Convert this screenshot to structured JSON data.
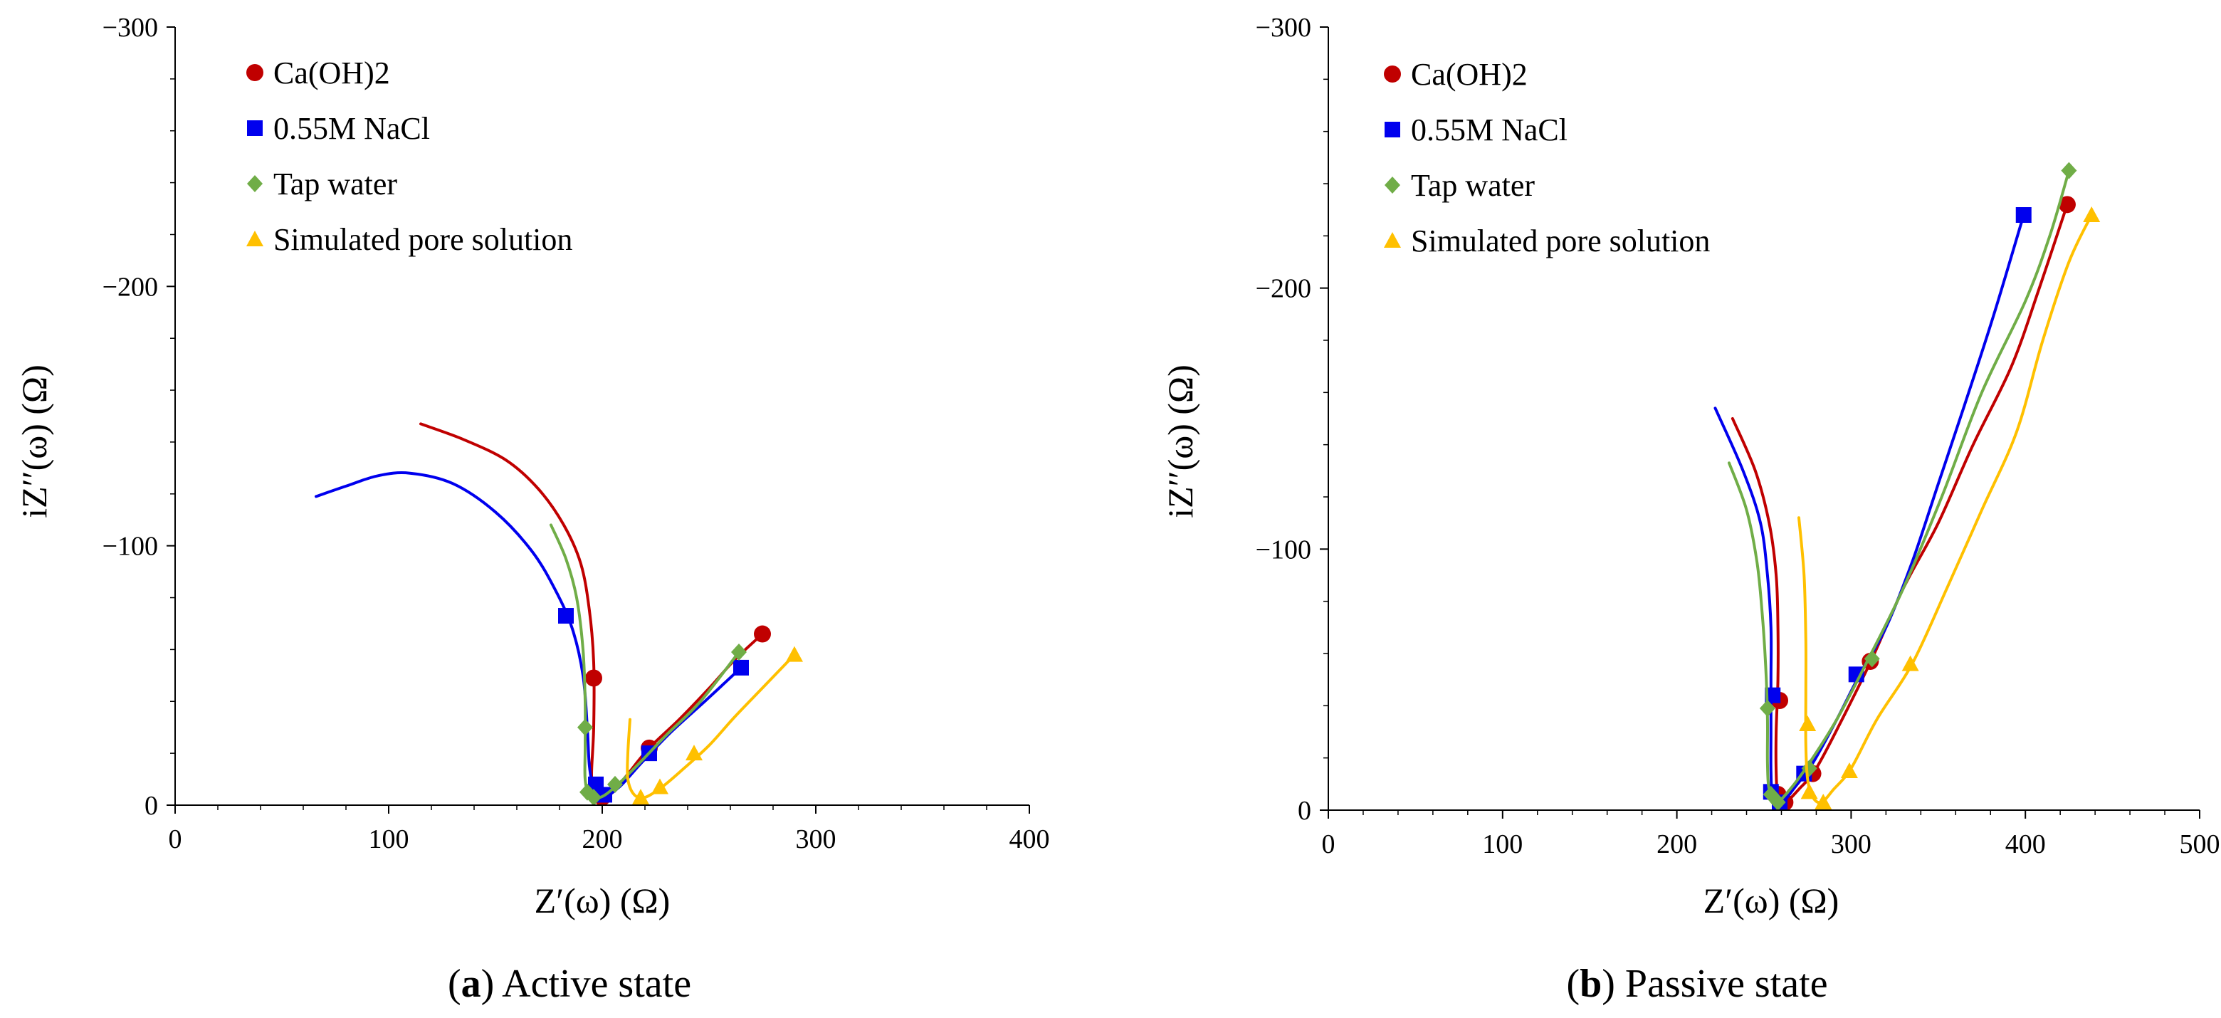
{
  "chart_data": [
    {
      "type": "line",
      "xlabel": "Z′(ω) (Ω)",
      "ylabel": "iZ′′(ω) (Ω)",
      "xlim": [
        0,
        400
      ],
      "ylim": [
        0,
        -300
      ],
      "xticks": [
        0,
        100,
        200,
        300,
        400
      ],
      "yticks": [
        0,
        -100,
        -200,
        -300
      ],
      "xticklabels": [
        "0",
        "100",
        "200",
        "300",
        "400"
      ],
      "yticklabels": [
        "0",
        "−100",
        "−200",
        "−300"
      ],
      "grid": false,
      "legend_position": "top-left",
      "caption": {
        "letter": "a",
        "text": "Active state"
      },
      "series": [
        {
          "name": "Ca(OH)2",
          "color": "#c00000",
          "marker": "circle",
          "curve": [
            [
              115,
              -147
            ],
            [
              135,
              -141
            ],
            [
              155,
              -133
            ],
            [
              170,
              -122
            ],
            [
              182,
              -108
            ],
            [
              190,
              -93
            ],
            [
              194,
              -75
            ],
            [
              196,
              -55
            ],
            [
              196,
              -30
            ],
            [
              195,
              -12
            ],
            [
              196,
              -5
            ],
            [
              200,
              -3
            ],
            [
              205,
              -5
            ],
            [
              212,
              -12
            ],
            [
              222,
              -22
            ],
            [
              236,
              -33
            ],
            [
              250,
              -45
            ],
            [
              262,
              -56
            ],
            [
              275,
              -66
            ]
          ],
          "points": [
            [
              196,
              -49
            ],
            [
              200,
              -3
            ],
            [
              222,
              -22
            ],
            [
              275,
              -66
            ]
          ]
        },
        {
          "name": "0.55M NaCl",
          "color": "#0000ee",
          "marker": "square",
          "curve": [
            [
              66,
              -119
            ],
            [
              80,
              -123
            ],
            [
              95,
              -127
            ],
            [
              110,
              -128
            ],
            [
              130,
              -124
            ],
            [
              150,
              -113
            ],
            [
              167,
              -98
            ],
            [
              178,
              -83
            ],
            [
              186,
              -68
            ],
            [
              191,
              -50
            ],
            [
              193,
              -30
            ],
            [
              194,
              -15
            ],
            [
              196,
              -7
            ],
            [
              200,
              -3
            ],
            [
              208,
              -7
            ],
            [
              218,
              -16
            ],
            [
              232,
              -28
            ],
            [
              248,
              -40
            ],
            [
              265,
              -53
            ]
          ],
          "points": [
            [
              183,
              -73
            ],
            [
              197,
              -8
            ],
            [
              201,
              -4
            ],
            [
              222,
              -20
            ],
            [
              265,
              -53
            ]
          ]
        },
        {
          "name": "Tap water",
          "color": "#70ad47",
          "marker": "diamond",
          "curve": [
            [
              176,
              -108
            ],
            [
              183,
              -95
            ],
            [
              188,
              -80
            ],
            [
              191,
              -60
            ],
            [
              192,
              -40
            ],
            [
              192,
              -22
            ],
            [
              192,
              -10
            ],
            [
              194,
              -4
            ],
            [
              199,
              -3
            ],
            [
              206,
              -7
            ],
            [
              216,
              -15
            ],
            [
              230,
              -27
            ],
            [
              246,
              -40
            ],
            [
              264,
              -59
            ]
          ],
          "points": [
            [
              192,
              -30
            ],
            [
              193,
              -5
            ],
            [
              196,
              -3
            ],
            [
              206,
              -8
            ],
            [
              264,
              -59
            ]
          ]
        },
        {
          "name": "Simulated pore solution",
          "color": "#ffc000",
          "marker": "triangle",
          "curve": [
            [
              213,
              -33
            ],
            [
              212,
              -20
            ],
            [
              212,
              -10
            ],
            [
              215,
              -4
            ],
            [
              220,
              -3
            ],
            [
              228,
              -7
            ],
            [
              238,
              -14
            ],
            [
              250,
              -23
            ],
            [
              262,
              -34
            ],
            [
              276,
              -46
            ],
            [
              290,
              -58
            ]
          ],
          "points": [
            [
              218,
              -3
            ],
            [
              227,
              -7
            ],
            [
              243,
              -20
            ],
            [
              290,
              -58
            ]
          ]
        }
      ]
    },
    {
      "type": "line",
      "xlabel": "Z′(ω) (Ω)",
      "ylabel": "iZ′′(ω) (Ω)",
      "xlim": [
        0,
        500
      ],
      "ylim": [
        0,
        -300
      ],
      "xticks": [
        0,
        100,
        200,
        300,
        400,
        500
      ],
      "yticks": [
        0,
        -100,
        -200,
        -300
      ],
      "xticklabels": [
        "0",
        "100",
        "200",
        "300",
        "400",
        "500"
      ],
      "yticklabels": [
        "0",
        "−100",
        "−200",
        "−300"
      ],
      "grid": false,
      "legend_position": "top-left",
      "caption": {
        "letter": "b",
        "text": "Passive state"
      },
      "series": [
        {
          "name": "Ca(OH)2",
          "color": "#c00000",
          "marker": "circle",
          "curve": [
            [
              232,
              -150
            ],
            [
              245,
              -130
            ],
            [
              253,
              -110
            ],
            [
              257,
              -90
            ],
            [
              258,
              -70
            ],
            [
              258,
              -50
            ],
            [
              257,
              -30
            ],
            [
              257,
              -15
            ],
            [
              258,
              -6
            ],
            [
              262,
              -3
            ],
            [
              270,
              -8
            ],
            [
              280,
              -16
            ],
            [
              295,
              -35
            ],
            [
              312,
              -58
            ],
            [
              330,
              -85
            ],
            [
              350,
              -110
            ],
            [
              370,
              -140
            ],
            [
              392,
              -170
            ],
            [
              408,
              -200
            ],
            [
              424,
              -232
            ]
          ],
          "points": [
            [
              259,
              -42
            ],
            [
              258,
              -6
            ],
            [
              262,
              -3
            ],
            [
              278,
              -14
            ],
            [
              311,
              -57
            ],
            [
              424,
              -232
            ]
          ]
        },
        {
          "name": "0.55M NaCl",
          "color": "#0000ee",
          "marker": "square",
          "curve": [
            [
              222,
              -154
            ],
            [
              238,
              -130
            ],
            [
              248,
              -110
            ],
            [
              252,
              -90
            ],
            [
              254,
              -70
            ],
            [
              254,
              -50
            ],
            [
              254,
              -30
            ],
            [
              254,
              -15
            ],
            [
              255,
              -7
            ],
            [
              260,
              -3
            ],
            [
              268,
              -9
            ],
            [
              278,
              -18
            ],
            [
              292,
              -35
            ],
            [
              305,
              -52
            ],
            [
              320,
              -70
            ],
            [
              335,
              -95
            ],
            [
              350,
              -125
            ],
            [
              365,
              -155
            ],
            [
              382,
              -190
            ],
            [
              399,
              -228
            ]
          ],
          "points": [
            [
              255,
              -44
            ],
            [
              254,
              -7
            ],
            [
              259,
              -3
            ],
            [
              273,
              -14
            ],
            [
              303,
              -52
            ],
            [
              399,
              -228
            ]
          ]
        },
        {
          "name": "Tap water",
          "color": "#70ad47",
          "marker": "diamond",
          "curve": [
            [
              230,
              -133
            ],
            [
              240,
              -115
            ],
            [
              246,
              -95
            ],
            [
              249,
              -75
            ],
            [
              251,
              -55
            ],
            [
              252,
              -35
            ],
            [
              252,
              -18
            ],
            [
              253,
              -8
            ],
            [
              257,
              -3
            ],
            [
              265,
              -8
            ],
            [
              276,
              -18
            ],
            [
              292,
              -35
            ],
            [
              310,
              -58
            ],
            [
              330,
              -85
            ],
            [
              352,
              -120
            ],
            [
              375,
              -160
            ],
            [
              400,
              -195
            ],
            [
              414,
              -220
            ],
            [
              425,
              -245
            ]
          ],
          "points": [
            [
              252,
              -39
            ],
            [
              254,
              -6
            ],
            [
              258,
              -3
            ],
            [
              276,
              -16
            ],
            [
              312,
              -58
            ],
            [
              425,
              -245
            ]
          ]
        },
        {
          "name": "Simulated pore solution",
          "color": "#ffc000",
          "marker": "triangle",
          "curve": [
            [
              270,
              -112
            ],
            [
              273,
              -90
            ],
            [
              274,
              -65
            ],
            [
              274,
              -45
            ],
            [
              274,
              -25
            ],
            [
              275,
              -12
            ],
            [
              278,
              -5
            ],
            [
              283,
              -3
            ],
            [
              290,
              -8
            ],
            [
              300,
              -16
            ],
            [
              315,
              -35
            ],
            [
              335,
              -56
            ],
            [
              355,
              -85
            ],
            [
              375,
              -115
            ],
            [
              395,
              -145
            ],
            [
              410,
              -180
            ],
            [
              425,
              -210
            ],
            [
              438,
              -228
            ]
          ],
          "points": [
            [
              275,
              -33
            ],
            [
              276,
              -7
            ],
            [
              284,
              -3
            ],
            [
              299,
              -15
            ],
            [
              334,
              -56
            ],
            [
              438,
              -228
            ]
          ]
        }
      ]
    }
  ]
}
